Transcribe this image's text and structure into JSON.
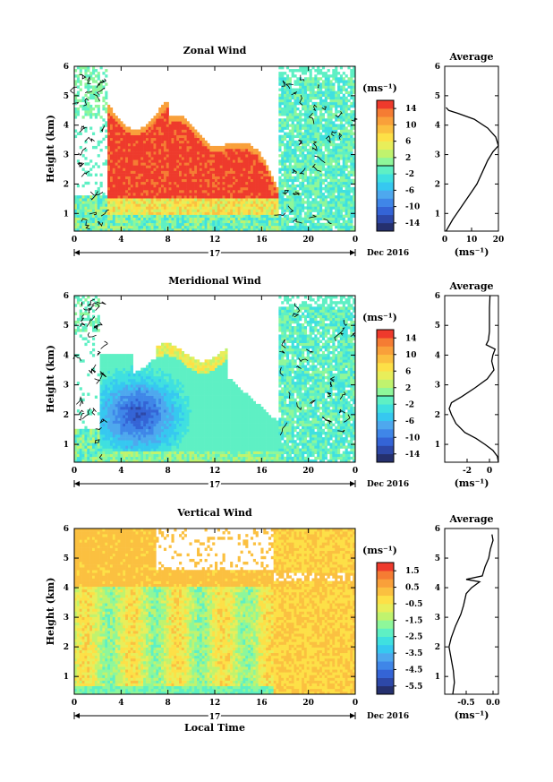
{
  "figure": {
    "day_label": "17",
    "month_label": "Dec 2016",
    "x_axis_label": "Local Time",
    "y_axis_label": "Height (km)",
    "x_ticks": [
      "0",
      "4",
      "8",
      "12",
      "16",
      "20",
      "0"
    ],
    "y_ticks": [
      "1",
      "2",
      "3",
      "4",
      "5",
      "6"
    ],
    "colors": {
      "palette": [
        "#25306e",
        "#2d48a8",
        "#3464d6",
        "#3f86e8",
        "#4ea8ee",
        "#36c8f0",
        "#3fe0e0",
        "#5ef0c4",
        "#8ef79a",
        "#c0f36e",
        "#e8ee5a",
        "#fde047",
        "#fbc040",
        "#f9a03a",
        "#f57c33",
        "#ee3a2c"
      ],
      "contour": "#000000",
      "frame": "#000000"
    }
  },
  "panels": [
    {
      "title": "Zonal Wind",
      "unit": "(ms⁻¹)",
      "colorbar_ticks": [
        "14",
        "10",
        "6",
        "2",
        "-2",
        "-6",
        "-10",
        "-14"
      ],
      "colorbar_line_index": 4,
      "profile_title": "Average",
      "profile_ticks": [
        "0",
        "10",
        "20"
      ],
      "profile_unit": "(ms⁻¹)"
    },
    {
      "title": "Meridional Wind",
      "unit": "(ms⁻¹)",
      "colorbar_ticks": [
        "14",
        "10",
        "6",
        "2",
        "-2",
        "-6",
        "-10",
        "-14"
      ],
      "colorbar_line_index": 4,
      "profile_title": "Average",
      "profile_ticks": [
        "-2",
        "0"
      ],
      "profile_unit": "(ms⁻¹)"
    },
    {
      "title": "Vertical Wind",
      "unit": "(ms⁻¹)",
      "colorbar_ticks": [
        "1.5",
        "0.5",
        "-0.5",
        "-1.5",
        "-2.5",
        "-3.5",
        "-4.5",
        "-5.5"
      ],
      "colorbar_line_index": -1,
      "profile_title": "Average",
      "profile_ticks": [
        "-0.5",
        "0.0"
      ],
      "profile_unit": "(ms⁻¹)"
    }
  ],
  "chart_data": [
    {
      "type": "heatmap",
      "title": "Zonal Wind",
      "xlabel": "",
      "ylabel": "Height (km)",
      "x_unit": "hours local time, 17 Dec 2016",
      "xlim": [
        0,
        24
      ],
      "ylim": [
        0.4,
        6
      ],
      "colorbar_unit": "ms⁻¹",
      "colorbar_range": [
        -16,
        16
      ],
      "description_values": {
        "strong_positive_region": {
          "x_from": 2.8,
          "x_to": 17,
          "height_from": 1.5,
          "height_to": 4.5,
          "value": 16
        },
        "near_surface_layer": {
          "height_to": 1.4,
          "value_range": [
            -2,
            8
          ]
        }
      },
      "profile": {
        "title": "Average",
        "xlabel": "(ms⁻¹)",
        "xlim": [
          0,
          20
        ],
        "ylim": [
          0.4,
          6
        ],
        "points": [
          [
            0.5,
            0.4
          ],
          [
            3,
            0.8
          ],
          [
            6,
            1.2
          ],
          [
            9,
            1.6
          ],
          [
            12,
            2.0
          ],
          [
            14,
            2.4
          ],
          [
            16,
            2.8
          ],
          [
            18,
            3.1
          ],
          [
            20,
            3.3
          ],
          [
            19,
            3.6
          ],
          [
            16,
            3.9
          ],
          [
            11,
            4.2
          ],
          [
            5,
            4.4
          ],
          [
            1.5,
            4.5
          ],
          [
            0.5,
            4.6
          ]
        ]
      }
    },
    {
      "type": "heatmap",
      "title": "Meridional Wind",
      "xlabel": "",
      "ylabel": "Height (km)",
      "x_unit": "hours local time, 17 Dec 2016",
      "xlim": [
        0,
        24
      ],
      "ylim": [
        0.4,
        6
      ],
      "colorbar_unit": "ms⁻¹",
      "colorbar_range": [
        -16,
        16
      ],
      "description_values": {
        "strong_negative_core": {
          "x": 5.5,
          "height": 2.0,
          "value": -14
        },
        "upper_positive_region": {
          "x_from": 6,
          "x_to": 13,
          "height_from": 3.0,
          "height_to": 4.0,
          "value_range": [
            0,
            6
          ]
        }
      },
      "profile": {
        "title": "Average",
        "xlabel": "(ms⁻¹)",
        "xlim": [
          -4,
          0.8
        ],
        "ylim": [
          0.4,
          6
        ],
        "points": [
          [
            0.8,
            0.4
          ],
          [
            0.7,
            0.6
          ],
          [
            0.3,
            0.8
          ],
          [
            -0.4,
            1.0
          ],
          [
            -1.2,
            1.2
          ],
          [
            -2.2,
            1.4
          ],
          [
            -3.0,
            1.7
          ],
          [
            -3.4,
            2.0
          ],
          [
            -3.6,
            2.2
          ],
          [
            -3.4,
            2.4
          ],
          [
            -2.5,
            2.6
          ],
          [
            -1.3,
            2.9
          ],
          [
            -0.2,
            3.2
          ],
          [
            0.4,
            3.5
          ],
          [
            0.2,
            3.8
          ],
          [
            0.3,
            4.0
          ],
          [
            0.5,
            4.2
          ],
          [
            -0.3,
            4.35
          ],
          [
            -0.1,
            4.5
          ],
          [
            0.0,
            4.8
          ],
          [
            0.0,
            5.2
          ],
          [
            0.0,
            5.6
          ],
          [
            0.05,
            6.0
          ]
        ]
      }
    },
    {
      "type": "heatmap",
      "title": "Vertical Wind",
      "xlabel": "Local Time",
      "ylabel": "Height (km)",
      "x_unit": "hours local time, 17 Dec 2016",
      "xlim": [
        0,
        24
      ],
      "ylim": [
        0.4,
        6
      ],
      "colorbar_unit": "ms⁻¹",
      "colorbar_range": [
        -6,
        2
      ],
      "description_values": {
        "mostly_near_zero_upper_and_late": {
          "value_range": [
            -0.5,
            0.5
          ]
        },
        "downward_region": {
          "x_from": 1,
          "x_to": 15,
          "height_from": 0.6,
          "height_to": 4.0,
          "value_range": [
            -2.0,
            -1.0
          ]
        }
      },
      "profile": {
        "title": "Average",
        "xlabel": "(ms⁻¹)",
        "xlim": [
          -0.9,
          0.1
        ],
        "ylim": [
          0.4,
          6
        ],
        "points": [
          [
            -0.75,
            0.4
          ],
          [
            -0.72,
            0.8
          ],
          [
            -0.74,
            1.2
          ],
          [
            -0.78,
            1.6
          ],
          [
            -0.82,
            2.0
          ],
          [
            -0.78,
            2.3
          ],
          [
            -0.7,
            2.7
          ],
          [
            -0.6,
            3.1
          ],
          [
            -0.55,
            3.4
          ],
          [
            -0.5,
            3.8
          ],
          [
            -0.4,
            4.0
          ],
          [
            -0.25,
            4.2
          ],
          [
            -0.5,
            4.28
          ],
          [
            -0.2,
            4.4
          ],
          [
            -0.15,
            4.7
          ],
          [
            -0.08,
            5.0
          ],
          [
            -0.05,
            5.3
          ],
          [
            0.0,
            5.6
          ],
          [
            -0.02,
            5.8
          ]
        ]
      }
    }
  ]
}
